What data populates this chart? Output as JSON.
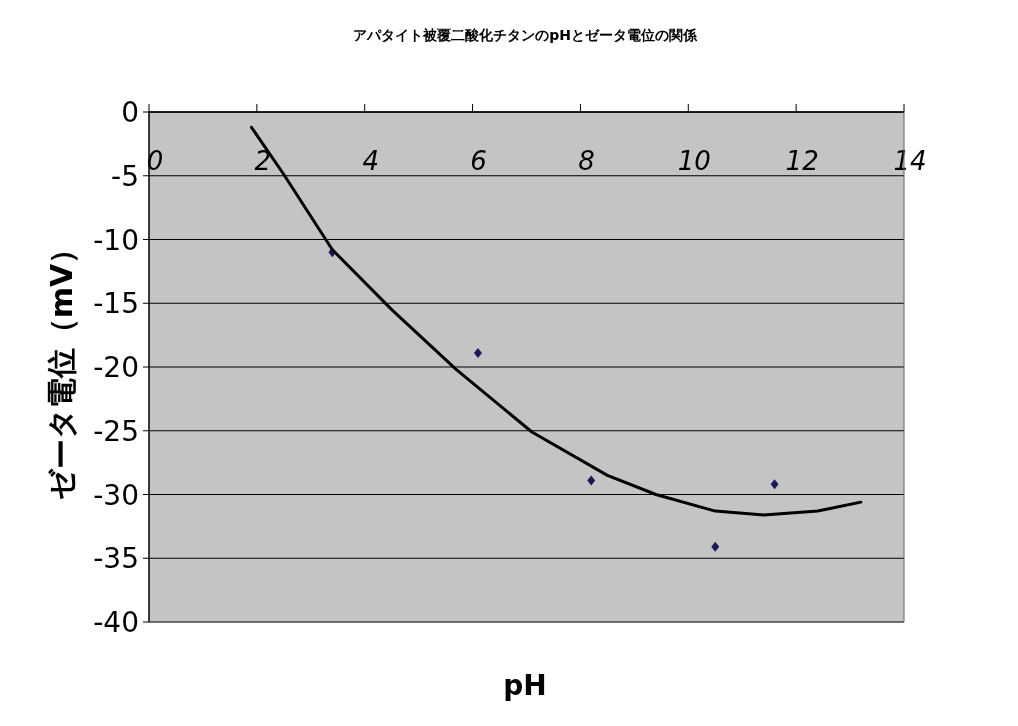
{
  "chart_data": {
    "type": "scatter",
    "title": "アパタイト被覆二酸化チタンのpHとゼータ電位の関係",
    "xlabel": "pH",
    "ylabel": "ゼータ電位（mV）",
    "xlim": [
      0,
      14
    ],
    "xticks": [
      0,
      2,
      4,
      6,
      8,
      10,
      12,
      14
    ],
    "ylim": [
      -40,
      0
    ],
    "yticks": [
      0,
      -5,
      -10,
      -15,
      -20,
      -25,
      -30,
      -35,
      -40
    ],
    "grid": "y",
    "series": [
      {
        "marker": "diamond",
        "color": "#1a1a5a",
        "x": [
          3.4,
          6.1,
          8.2,
          10.5,
          11.6
        ],
        "values": [
          -11.0,
          -18.9,
          -28.9,
          -34.1,
          -29.2
        ]
      },
      {
        "type": "line",
        "marker": "none",
        "color": "#000000",
        "x": [
          1.9,
          2.5,
          3.4,
          4.5,
          5.7,
          7.1,
          8.5,
          9.4,
          10.5,
          11.4,
          12.4,
          13.2
        ],
        "values": [
          -1.2,
          -4.9,
          -10.8,
          -15.5,
          -20.2,
          -25.1,
          -28.5,
          -30.0,
          -31.3,
          -31.6,
          -31.3,
          -30.6
        ]
      }
    ]
  }
}
